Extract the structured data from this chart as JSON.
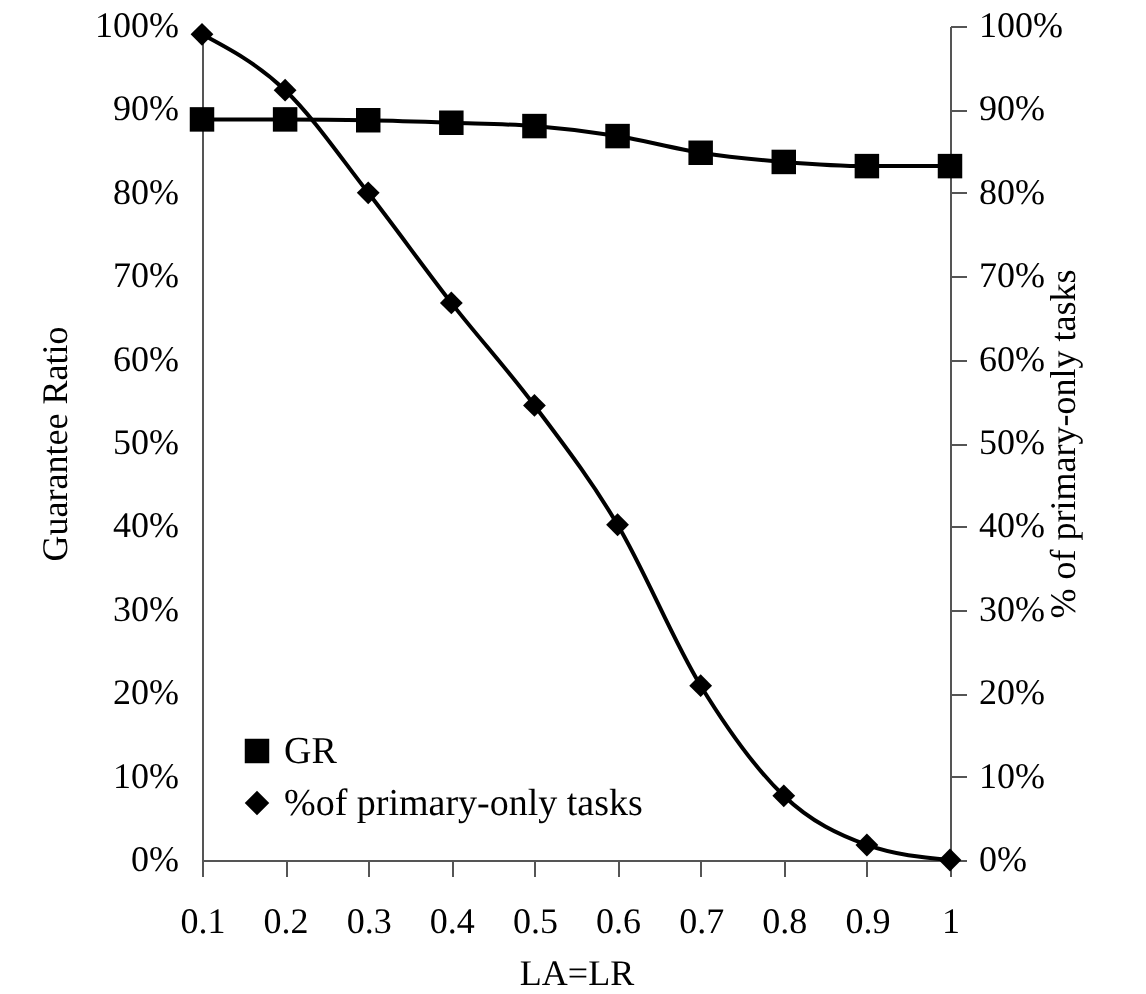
{
  "chart_data": {
    "type": "line",
    "xlabel": "LA=LR",
    "ylabel": "Guarantee Ratio",
    "y2label": "% of primary-only tasks",
    "x": [
      0.1,
      0.2,
      0.3,
      0.4,
      0.5,
      0.6,
      0.7,
      0.8,
      0.9,
      1
    ],
    "series": [
      {
        "name": "GR",
        "color": "#000000",
        "marker": "square",
        "values": [
          88.8,
          88.8,
          88.7,
          88.4,
          88.0,
          86.8,
          84.8,
          83.7,
          83.2,
          83.2
        ]
      },
      {
        "name": "%of primary-only tasks",
        "color": "#000000",
        "marker": "diamond",
        "axis": "y2",
        "values": [
          99.0,
          92.3,
          80.0,
          66.8,
          54.5,
          40.2,
          20.9,
          7.7,
          1.8,
          0.0
        ]
      }
    ],
    "xlim": [
      0.1,
      1
    ],
    "xticks": [
      0.1,
      0.2,
      0.3,
      0.4,
      0.5,
      0.6,
      0.7,
      0.8,
      0.9,
      1
    ],
    "ylim": [
      0,
      100
    ],
    "yticks": [
      {
        "value": 0,
        "label": "0%"
      },
      {
        "value": 10,
        "label": "10%"
      },
      {
        "value": 20,
        "label": "20%"
      },
      {
        "value": 30,
        "label": "30%"
      },
      {
        "value": 40,
        "label": "40%"
      },
      {
        "value": 50,
        "label": "50%"
      },
      {
        "value": 60,
        "label": "60%"
      },
      {
        "value": 70,
        "label": "70%"
      },
      {
        "value": 80,
        "label": "80%"
      },
      {
        "value": 90,
        "label": "90%"
      },
      {
        "value": 100,
        "label": "100%"
      }
    ],
    "y2lim": [
      0,
      100
    ],
    "y2ticks": [
      {
        "value": 0,
        "label": "0%"
      },
      {
        "value": 10,
        "label": "10%"
      },
      {
        "value": 20,
        "label": "20%"
      },
      {
        "value": 30,
        "label": "30%"
      },
      {
        "value": 40,
        "label": "40%"
      },
      {
        "value": 50,
        "label": "50%"
      },
      {
        "value": 60,
        "label": "60%"
      },
      {
        "value": 70,
        "label": "70%"
      },
      {
        "value": 80,
        "label": "80%"
      },
      {
        "value": 90,
        "label": "90%"
      },
      {
        "value": 100,
        "label": "100%"
      }
    ],
    "grid": false,
    "legend": "bottom left",
    "line_style": "solid"
  }
}
